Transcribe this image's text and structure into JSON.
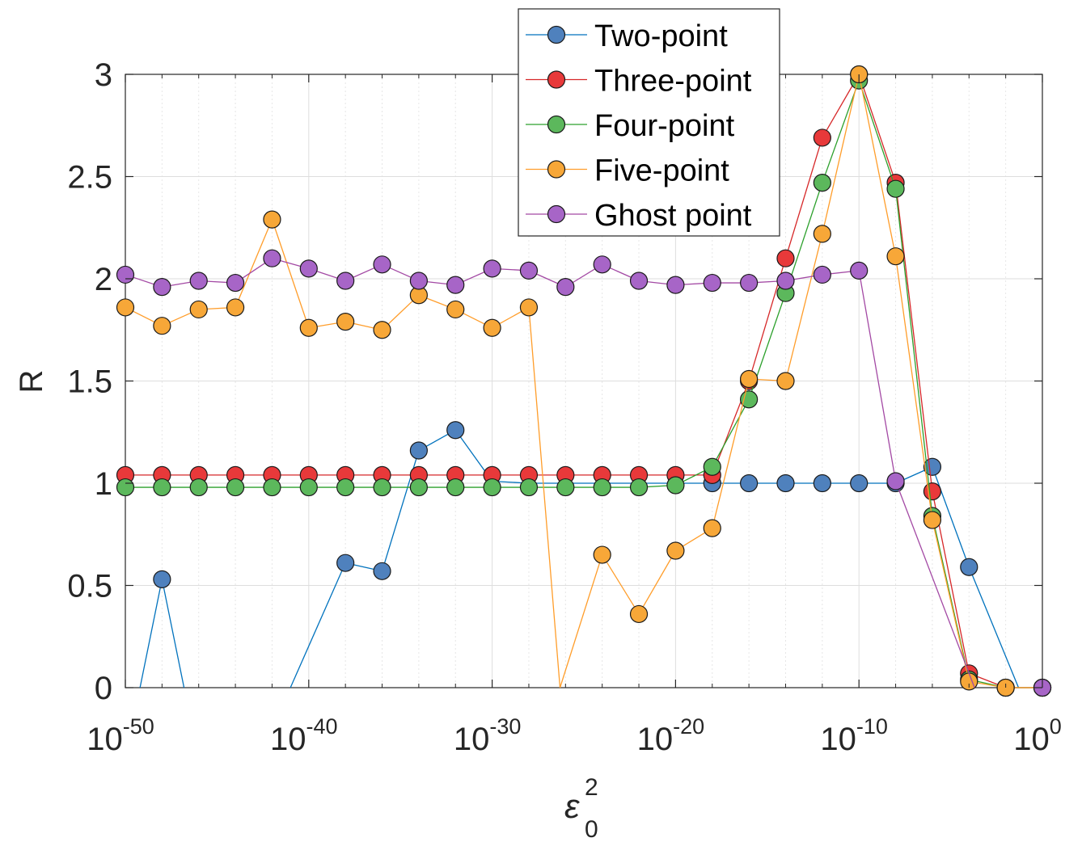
{
  "chart_data": {
    "type": "line",
    "title": "",
    "xlabel": "ε",
    "xlabel_sub": "0",
    "xlabel_sup": "2",
    "ylabel": "R",
    "xscale": "log",
    "xlim_exponent": [
      -50,
      0
    ],
    "ylim": [
      0,
      3
    ],
    "grid": true,
    "minor_grid_x": true,
    "legend_position": "top-right",
    "x_ticks": [
      {
        "base": "10",
        "exp": "-50",
        "e": -50
      },
      {
        "base": "10",
        "exp": "-40",
        "e": -40
      },
      {
        "base": "10",
        "exp": "-30",
        "e": -30
      },
      {
        "base": "10",
        "exp": "-20",
        "e": -20
      },
      {
        "base": "10",
        "exp": "-10",
        "e": -10
      },
      {
        "base": "10",
        "exp": "0",
        "e": 0
      }
    ],
    "y_ticks": [
      {
        "label": "0",
        "v": 0
      },
      {
        "label": "0.5",
        "v": 0.5
      },
      {
        "label": "1",
        "v": 1
      },
      {
        "label": "1.5",
        "v": 1.5
      },
      {
        "label": "2",
        "v": 2
      },
      {
        "label": "2.5",
        "v": 2.5
      },
      {
        "label": "3",
        "v": 3
      }
    ],
    "x_exponents": [
      -50,
      -48,
      -46,
      -44,
      -42,
      -40,
      -38,
      -36,
      -34,
      -32,
      -30,
      -28,
      -26,
      -24,
      -22,
      -20,
      -18,
      -16,
      -14,
      -12,
      -10,
      -8,
      -6,
      -4,
      -2,
      0
    ],
    "series": [
      {
        "name": "Two-point",
        "color": "#0072BD",
        "fill": "#4f81bd",
        "values": [
          null,
          0.53,
          null,
          null,
          null,
          null,
          0.61,
          0.57,
          1.16,
          1.26,
          1.01,
          1.0,
          1.0,
          1.0,
          1.0,
          1.0,
          1.0,
          1.0,
          1.0,
          1.0,
          1.0,
          1.0,
          1.08,
          0.59,
          null,
          null
        ],
        "marker_mask": [
          false,
          true,
          false,
          false,
          false,
          false,
          true,
          true,
          true,
          true,
          false,
          false,
          false,
          false,
          false,
          false,
          true,
          true,
          true,
          true,
          true,
          true,
          true,
          true,
          false,
          false
        ],
        "line_ext": [
          {
            "from_x": -49.2,
            "from_y": 0,
            "to_i": 1
          },
          {
            "from_i": 1,
            "to_x": -46.8,
            "to_y": 0
          },
          {
            "from_x": -41.0,
            "from_y": 0,
            "to_i": 6
          },
          {
            "from_i": 23,
            "to_x": -1.3,
            "to_y": 0
          }
        ]
      },
      {
        "name": "Three-point",
        "color": "#D62728",
        "fill": "#e8393a",
        "values": [
          1.04,
          1.04,
          1.04,
          1.04,
          1.04,
          1.04,
          1.04,
          1.04,
          1.04,
          1.04,
          1.04,
          1.04,
          1.04,
          1.04,
          1.04,
          1.04,
          1.04,
          1.5,
          2.1,
          2.69,
          3.0,
          2.47,
          0.96,
          0.07,
          0.0,
          0.0
        ]
      },
      {
        "name": "Four-point",
        "color": "#2CA02C",
        "fill": "#5cb85c",
        "values": [
          0.98,
          0.98,
          0.98,
          0.98,
          0.98,
          0.98,
          0.98,
          0.98,
          0.98,
          0.98,
          0.98,
          0.98,
          0.98,
          0.98,
          0.98,
          0.99,
          1.08,
          1.41,
          1.93,
          2.47,
          2.97,
          2.44,
          0.84,
          0.04,
          0.0,
          0.0
        ]
      },
      {
        "name": "Five-point",
        "color": "#FF9D2A",
        "fill": "#f7a738",
        "values": [
          1.86,
          1.77,
          1.85,
          1.86,
          2.29,
          1.76,
          1.79,
          1.75,
          1.92,
          1.85,
          1.76,
          1.86,
          null,
          0.65,
          0.36,
          0.67,
          0.78,
          1.51,
          1.5,
          2.22,
          3.0,
          2.11,
          0.82,
          0.03,
          0.0,
          0.0
        ],
        "line_ext": [
          {
            "from_i": 11,
            "to_x": -26.3,
            "to_y": 0
          },
          {
            "from_x": -26.3,
            "from_y": 0,
            "to_i": 13
          }
        ]
      },
      {
        "name": "Ghost point",
        "color": "#A349A4",
        "fill": "#a765c7",
        "values": [
          2.02,
          1.96,
          1.99,
          1.98,
          2.1,
          2.05,
          1.99,
          2.07,
          1.99,
          1.97,
          2.05,
          2.04,
          1.96,
          2.07,
          1.99,
          1.97,
          1.98,
          1.98,
          1.99,
          2.02,
          2.04,
          1.01,
          null,
          null,
          null,
          0.0
        ],
        "line_ext": [
          {
            "from_i": 21,
            "to_x": -3.7,
            "to_y": 0
          }
        ]
      }
    ]
  }
}
